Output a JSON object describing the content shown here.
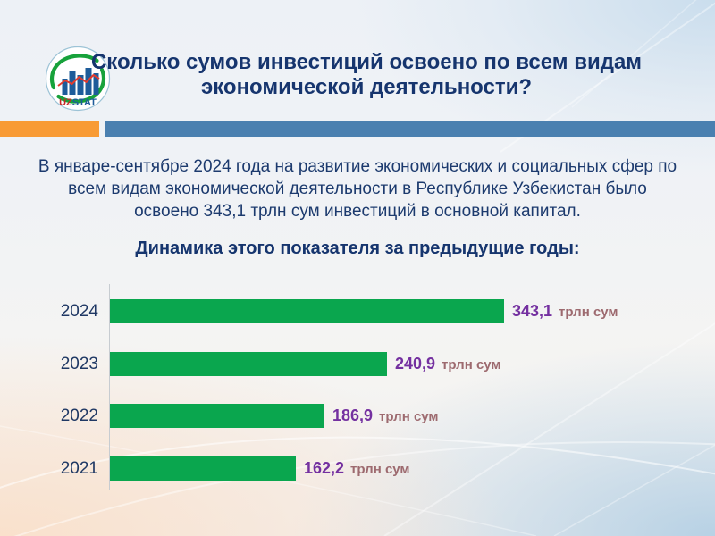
{
  "logo": {
    "uz": "UZ",
    "stat": "STAT"
  },
  "header": {
    "title": "Сколько сумов инвестиций освоено по всем видам экономической деятельности?"
  },
  "intro": {
    "text": "В январе-сентябре 2024 года на развитие экономических и социальных сфер по всем видам экономической деятельности в Республике Узбекистан было освоено 343,1 трлн сум инвестиций в основной капитал."
  },
  "section": {
    "title": "Динамика этого показателя за предыдущие годы:"
  },
  "chart_data": {
    "type": "bar",
    "orientation": "horizontal",
    "title": "Динамика этого показателя за предыдущие годы:",
    "categories": [
      "2024",
      "2023",
      "2022",
      "2021"
    ],
    "values": [
      343.1,
      240.9,
      186.9,
      162.2
    ],
    "value_labels": [
      "343,1",
      "240,9",
      "186,9",
      "162,2"
    ],
    "unit": "трлн сум",
    "xlim": [
      0,
      360
    ],
    "grid": false,
    "legend": "none",
    "bar_color": "#0AA64E",
    "value_color": "#7430A0",
    "unit_color": "#9D6A6F",
    "category_color": "#1F3864"
  },
  "theme": {
    "accent_orange": "#F89B35",
    "accent_steel_blue": "#4A80B0",
    "title_navy": "#16356E",
    "bar_green": "#0AA64E",
    "value_purple": "#7430A0"
  }
}
